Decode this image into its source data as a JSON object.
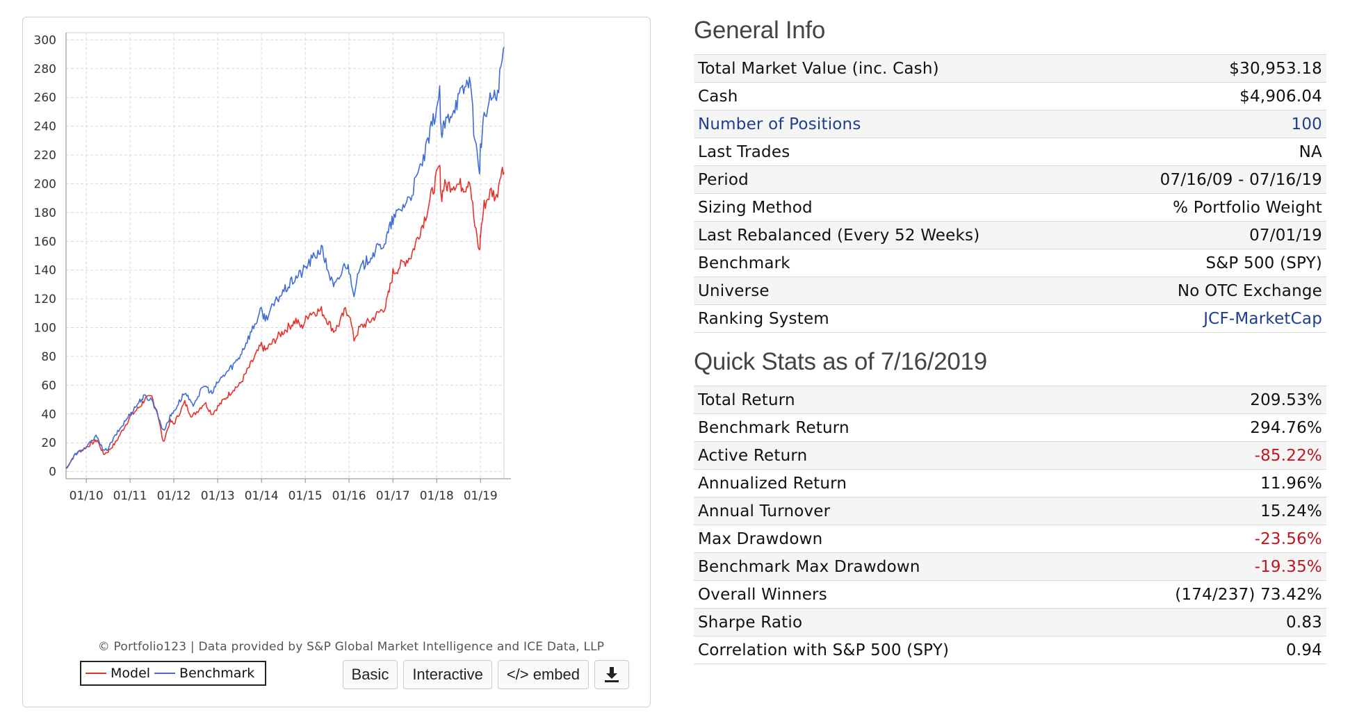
{
  "general_info": {
    "title": "General Info",
    "rows": [
      {
        "label": "Total Market Value (inc. Cash)",
        "value": "$30,953.18"
      },
      {
        "label": "Cash",
        "value": "$4,906.04"
      },
      {
        "label": "Number of Positions",
        "value": "100"
      },
      {
        "label": "Last Trades",
        "value": "NA"
      },
      {
        "label": "Period",
        "value": "07/16/09 - 07/16/19"
      },
      {
        "label": "Sizing Method",
        "value": "% Portfolio Weight"
      },
      {
        "label": "Last Rebalanced (Every 52 Weeks)",
        "value": "07/01/19"
      },
      {
        "label": "Benchmark",
        "value": "S&P 500 (SPY)"
      },
      {
        "label": "Universe",
        "value": "No OTC Exchange"
      },
      {
        "label": "Ranking System",
        "value": "JCF-MarketCap"
      }
    ]
  },
  "quick_stats": {
    "title": "Quick Stats as of 7/16/2019",
    "rows": [
      {
        "label": "Total Return",
        "value": "209.53%"
      },
      {
        "label": "Benchmark Return",
        "value": "294.76%"
      },
      {
        "label": "Active Return",
        "value": "-85.22%"
      },
      {
        "label": "Annualized Return",
        "value": "11.96%"
      },
      {
        "label": "Annual Turnover",
        "value": "15.24%"
      },
      {
        "label": "Max Drawdown",
        "value": "-23.56%"
      },
      {
        "label": "Benchmark Max Drawdown",
        "value": "-19.35%"
      },
      {
        "label": "Overall Winners",
        "value": "(174/237) 73.42%"
      },
      {
        "label": "Sharpe Ratio",
        "value": "0.83"
      },
      {
        "label": "Correlation with S&P 500 (SPY)",
        "value": "0.94"
      }
    ]
  },
  "chart_panel": {
    "credit": "© Portfolio123 | Data provided by S&P Global Market Intelligence and ICE Data, LLP",
    "legend": {
      "model": "Model",
      "benchmark": "Benchmark"
    },
    "buttons": {
      "basic": "Basic",
      "interactive": "Interactive",
      "embed": "</> embed",
      "download_icon": "download-icon"
    }
  },
  "colors": {
    "model": "#e8302a",
    "benchmark": "#3f6cd4",
    "link": "#1f3e8c",
    "negative": "#c0161c"
  },
  "chart_data": {
    "type": "line",
    "title": "",
    "xlabel": "",
    "ylabel": "",
    "x_ticks": [
      "01/10",
      "01/11",
      "01/12",
      "01/13",
      "01/14",
      "01/15",
      "01/16",
      "01/17",
      "01/18",
      "01/19"
    ],
    "y_ticks": [
      0,
      20,
      40,
      60,
      80,
      100,
      120,
      140,
      160,
      180,
      200,
      220,
      240,
      260,
      280,
      300
    ],
    "ylim": [
      -5,
      305
    ],
    "xlim": [
      "07/16/09",
      "07/16/19"
    ],
    "grid": true,
    "legend_position": "bottom-left",
    "series": [
      {
        "name": "Model",
        "x": [
          "07/16/09",
          "10/01/09",
          "01/01/10",
          "04/01/10",
          "05/25/10",
          "07/01/10",
          "09/01/10",
          "01/01/11",
          "04/01/11",
          "05/01/11",
          "07/01/11",
          "08/20/11",
          "10/04/11",
          "12/01/11",
          "01/01/12",
          "04/01/12",
          "06/01/12",
          "09/15/12",
          "11/15/12",
          "01/01/13",
          "05/20/13",
          "07/01/13",
          "12/31/13",
          "02/01/14",
          "06/01/14",
          "10/15/14",
          "12/01/14",
          "02/01/15",
          "05/15/15",
          "08/25/15",
          "09/30/15",
          "12/01/15",
          "01/01/16",
          "02/11/16",
          "04/01/16",
          "07/01/16",
          "11/01/16",
          "12/01/16",
          "01/01/17",
          "06/01/17",
          "10/01/17",
          "01/26/18",
          "02/08/18",
          "03/01/18",
          "06/01/18",
          "09/01/18",
          "10/01/18",
          "11/15/18",
          "12/24/18",
          "01/01/19",
          "02/01/19",
          "04/01/19",
          "05/15/19",
          "06/20/19",
          "07/16/19"
        ],
        "values": [
          2,
          12,
          17,
          22,
          12,
          14,
          20,
          38,
          46,
          50,
          52,
          40,
          20,
          35,
          33,
          48,
          38,
          48,
          40,
          45,
          58,
          60,
          88,
          84,
          95,
          105,
          100,
          110,
          112,
          98,
          101,
          112,
          110,
          92,
          100,
          105,
          115,
          125,
          138,
          150,
          178,
          212,
          190,
          198,
          200,
          198,
          205,
          170,
          152,
          165,
          185,
          195,
          190,
          210,
          208
        ]
      },
      {
        "name": "Benchmark",
        "x": [
          "07/16/09",
          "10/01/09",
          "01/01/10",
          "04/01/10",
          "05/25/10",
          "07/01/10",
          "09/01/10",
          "01/01/11",
          "04/01/11",
          "05/01/11",
          "07/01/11",
          "08/20/11",
          "10/04/11",
          "12/01/11",
          "01/01/12",
          "04/01/12",
          "06/01/12",
          "09/15/12",
          "11/15/12",
          "01/01/13",
          "05/20/13",
          "07/01/13",
          "12/31/13",
          "02/01/14",
          "06/01/14",
          "10/15/14",
          "12/01/14",
          "02/01/15",
          "05/15/15",
          "08/25/15",
          "09/30/15",
          "12/01/15",
          "01/01/16",
          "02/11/16",
          "04/01/16",
          "07/01/16",
          "11/01/16",
          "12/01/16",
          "01/01/17",
          "06/01/17",
          "10/01/17",
          "01/26/18",
          "02/08/18",
          "03/01/18",
          "06/01/18",
          "09/01/18",
          "10/01/18",
          "11/15/18",
          "12/24/18",
          "01/01/19",
          "02/01/19",
          "04/01/19",
          "05/15/19",
          "06/20/19",
          "07/16/19"
        ],
        "values": [
          2,
          12,
          17,
          25,
          14,
          16,
          25,
          40,
          50,
          52,
          50,
          40,
          28,
          38,
          42,
          55,
          46,
          60,
          54,
          62,
          75,
          80,
          112,
          106,
          122,
          135,
          138,
          145,
          155,
          128,
          132,
          145,
          140,
          125,
          140,
          150,
          160,
          168,
          175,
          192,
          222,
          262,
          230,
          240,
          255,
          268,
          275,
          230,
          210,
          225,
          245,
          260,
          260,
          280,
          295
        ]
      }
    ]
  }
}
